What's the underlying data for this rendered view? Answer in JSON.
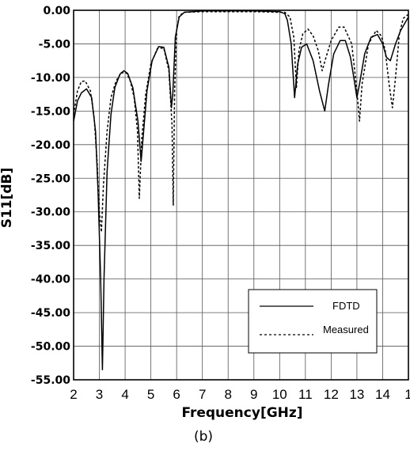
{
  "chart_data": {
    "type": "line",
    "xlabel": "Frequency[GHz]",
    "ylabel": "S11[dB]",
    "caption": "(b)",
    "xlim": [
      2,
      15
    ],
    "ylim": [
      -55,
      0
    ],
    "x_ticks": [
      "2",
      "3",
      "4",
      "5",
      "6",
      "7",
      "8",
      "9",
      "10",
      "11",
      "12",
      "13",
      "14",
      "1"
    ],
    "y_ticks": [
      "0.00",
      "-5.00",
      "-10.00",
      "-15.00",
      "-20.00",
      "-25.00",
      "-30.00",
      "-35.00",
      "-40.00",
      "-45.00",
      "-50.00",
      "-55.00"
    ],
    "grid": true,
    "legend_position": "bottom-right",
    "series": [
      {
        "name": "FDTD",
        "style": "solid",
        "points": [
          [
            2.0,
            -16.5
          ],
          [
            2.15,
            -13.5
          ],
          [
            2.3,
            -12.3
          ],
          [
            2.5,
            -11.7
          ],
          [
            2.7,
            -13.0
          ],
          [
            2.85,
            -18.0
          ],
          [
            2.95,
            -27.0
          ],
          [
            3.05,
            -40.0
          ],
          [
            3.12,
            -53.5
          ],
          [
            3.18,
            -40.0
          ],
          [
            3.3,
            -24.0
          ],
          [
            3.45,
            -15.5
          ],
          [
            3.6,
            -11.5
          ],
          [
            3.8,
            -9.5
          ],
          [
            3.95,
            -9.0
          ],
          [
            4.1,
            -9.4
          ],
          [
            4.3,
            -11.5
          ],
          [
            4.5,
            -16.5
          ],
          [
            4.62,
            -22.5
          ],
          [
            4.72,
            -18.0
          ],
          [
            4.85,
            -12.0
          ],
          [
            5.05,
            -7.5
          ],
          [
            5.3,
            -5.4
          ],
          [
            5.5,
            -5.5
          ],
          [
            5.7,
            -8.5
          ],
          [
            5.8,
            -14.5
          ],
          [
            5.85,
            -12.5
          ],
          [
            5.95,
            -4.0
          ],
          [
            6.1,
            -1.0
          ],
          [
            6.3,
            -0.3
          ],
          [
            7.0,
            -0.1
          ],
          [
            8.0,
            -0.1
          ],
          [
            9.0,
            -0.1
          ],
          [
            10.0,
            -0.2
          ],
          [
            10.2,
            -0.5
          ],
          [
            10.3,
            -1.5
          ],
          [
            10.45,
            -5.0
          ],
          [
            10.58,
            -13.0
          ],
          [
            10.7,
            -8.0
          ],
          [
            10.85,
            -5.5
          ],
          [
            11.05,
            -5.0
          ],
          [
            11.3,
            -7.5
          ],
          [
            11.55,
            -12.0
          ],
          [
            11.75,
            -15.0
          ],
          [
            11.9,
            -11.0
          ],
          [
            12.1,
            -6.5
          ],
          [
            12.35,
            -4.5
          ],
          [
            12.55,
            -4.5
          ],
          [
            12.75,
            -7.0
          ],
          [
            12.9,
            -10.5
          ],
          [
            13.0,
            -13.0
          ],
          [
            13.1,
            -11.0
          ],
          [
            13.3,
            -6.5
          ],
          [
            13.55,
            -4.0
          ],
          [
            13.8,
            -3.6
          ],
          [
            14.0,
            -5.0
          ],
          [
            14.15,
            -7.0
          ],
          [
            14.3,
            -7.5
          ],
          [
            14.5,
            -5.0
          ],
          [
            14.7,
            -3.0
          ],
          [
            15.0,
            -1.0
          ]
        ]
      },
      {
        "name": "Measured",
        "style": "dotted",
        "points": [
          [
            2.0,
            -15.5
          ],
          [
            2.15,
            -12.0
          ],
          [
            2.3,
            -10.6
          ],
          [
            2.45,
            -10.5
          ],
          [
            2.65,
            -12.0
          ],
          [
            2.8,
            -16.0
          ],
          [
            2.92,
            -23.0
          ],
          [
            3.0,
            -30.0
          ],
          [
            3.08,
            -33.0
          ],
          [
            3.16,
            -26.0
          ],
          [
            3.3,
            -18.0
          ],
          [
            3.45,
            -13.0
          ],
          [
            3.65,
            -10.5
          ],
          [
            3.85,
            -9.3
          ],
          [
            4.05,
            -9.3
          ],
          [
            4.2,
            -10.5
          ],
          [
            4.35,
            -13.0
          ],
          [
            4.48,
            -18.0
          ],
          [
            4.55,
            -28.0
          ],
          [
            4.65,
            -19.0
          ],
          [
            4.8,
            -12.5
          ],
          [
            5.0,
            -8.0
          ],
          [
            5.25,
            -5.7
          ],
          [
            5.5,
            -5.6
          ],
          [
            5.7,
            -9.0
          ],
          [
            5.82,
            -17.0
          ],
          [
            5.87,
            -29.0
          ],
          [
            5.92,
            -12.0
          ],
          [
            6.0,
            -3.0
          ],
          [
            6.1,
            -0.8
          ],
          [
            6.3,
            -0.3
          ],
          [
            7.0,
            -0.2
          ],
          [
            8.0,
            -0.2
          ],
          [
            9.0,
            -0.2
          ],
          [
            10.0,
            -0.3
          ],
          [
            10.2,
            -0.3
          ],
          [
            10.4,
            -1.0
          ],
          [
            10.55,
            -4.0
          ],
          [
            10.65,
            -11.5
          ],
          [
            10.75,
            -6.0
          ],
          [
            10.9,
            -3.5
          ],
          [
            11.1,
            -2.8
          ],
          [
            11.3,
            -3.8
          ],
          [
            11.5,
            -6.0
          ],
          [
            11.65,
            -9.0
          ],
          [
            11.8,
            -7.0
          ],
          [
            12.0,
            -4.5
          ],
          [
            12.3,
            -2.5
          ],
          [
            12.5,
            -2.5
          ],
          [
            12.8,
            -5.0
          ],
          [
            13.0,
            -12.0
          ],
          [
            13.1,
            -16.5
          ],
          [
            13.2,
            -11.0
          ],
          [
            13.45,
            -5.0
          ],
          [
            13.75,
            -3.0
          ],
          [
            13.95,
            -3.8
          ],
          [
            14.1,
            -6.0
          ],
          [
            14.25,
            -11.0
          ],
          [
            14.38,
            -14.5
          ],
          [
            14.5,
            -10.0
          ],
          [
            14.65,
            -3.5
          ],
          [
            14.8,
            -1.2
          ],
          [
            15.0,
            -0.6
          ]
        ]
      }
    ]
  }
}
